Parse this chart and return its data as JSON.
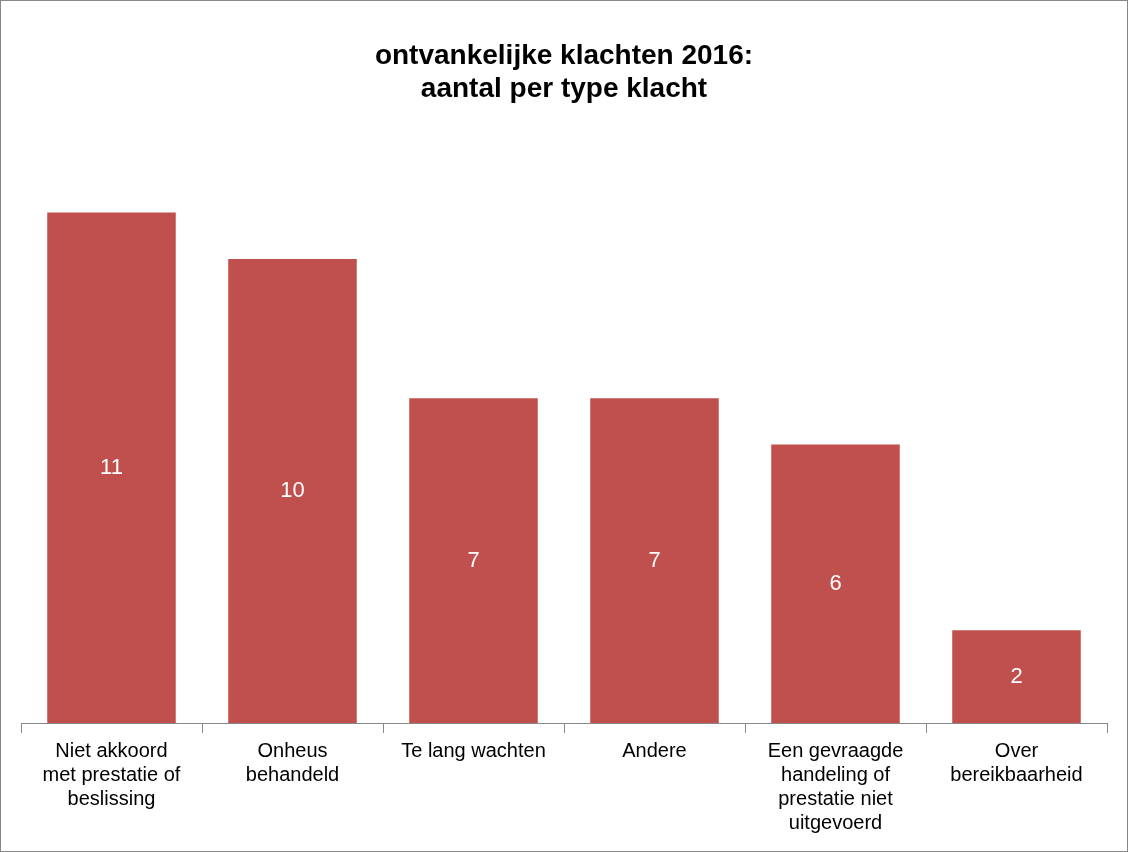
{
  "chart_data": {
    "type": "bar",
    "title": "ontvankelijke klachten 2016: aantal per type klacht",
    "categories": [
      "Niet akkoord met prestatie of beslissing",
      "Onheus behandeld",
      "Te lang wachten",
      "Andere",
      "Een gevraagde handeling of prestatie niet uitgevoerd",
      "Over bereikbaarheid"
    ],
    "values": [
      11,
      10,
      7,
      7,
      6,
      2
    ],
    "color": "#c0504d",
    "data_labels": true,
    "grid": false,
    "legend": false,
    "tick_labels": "x"
  }
}
